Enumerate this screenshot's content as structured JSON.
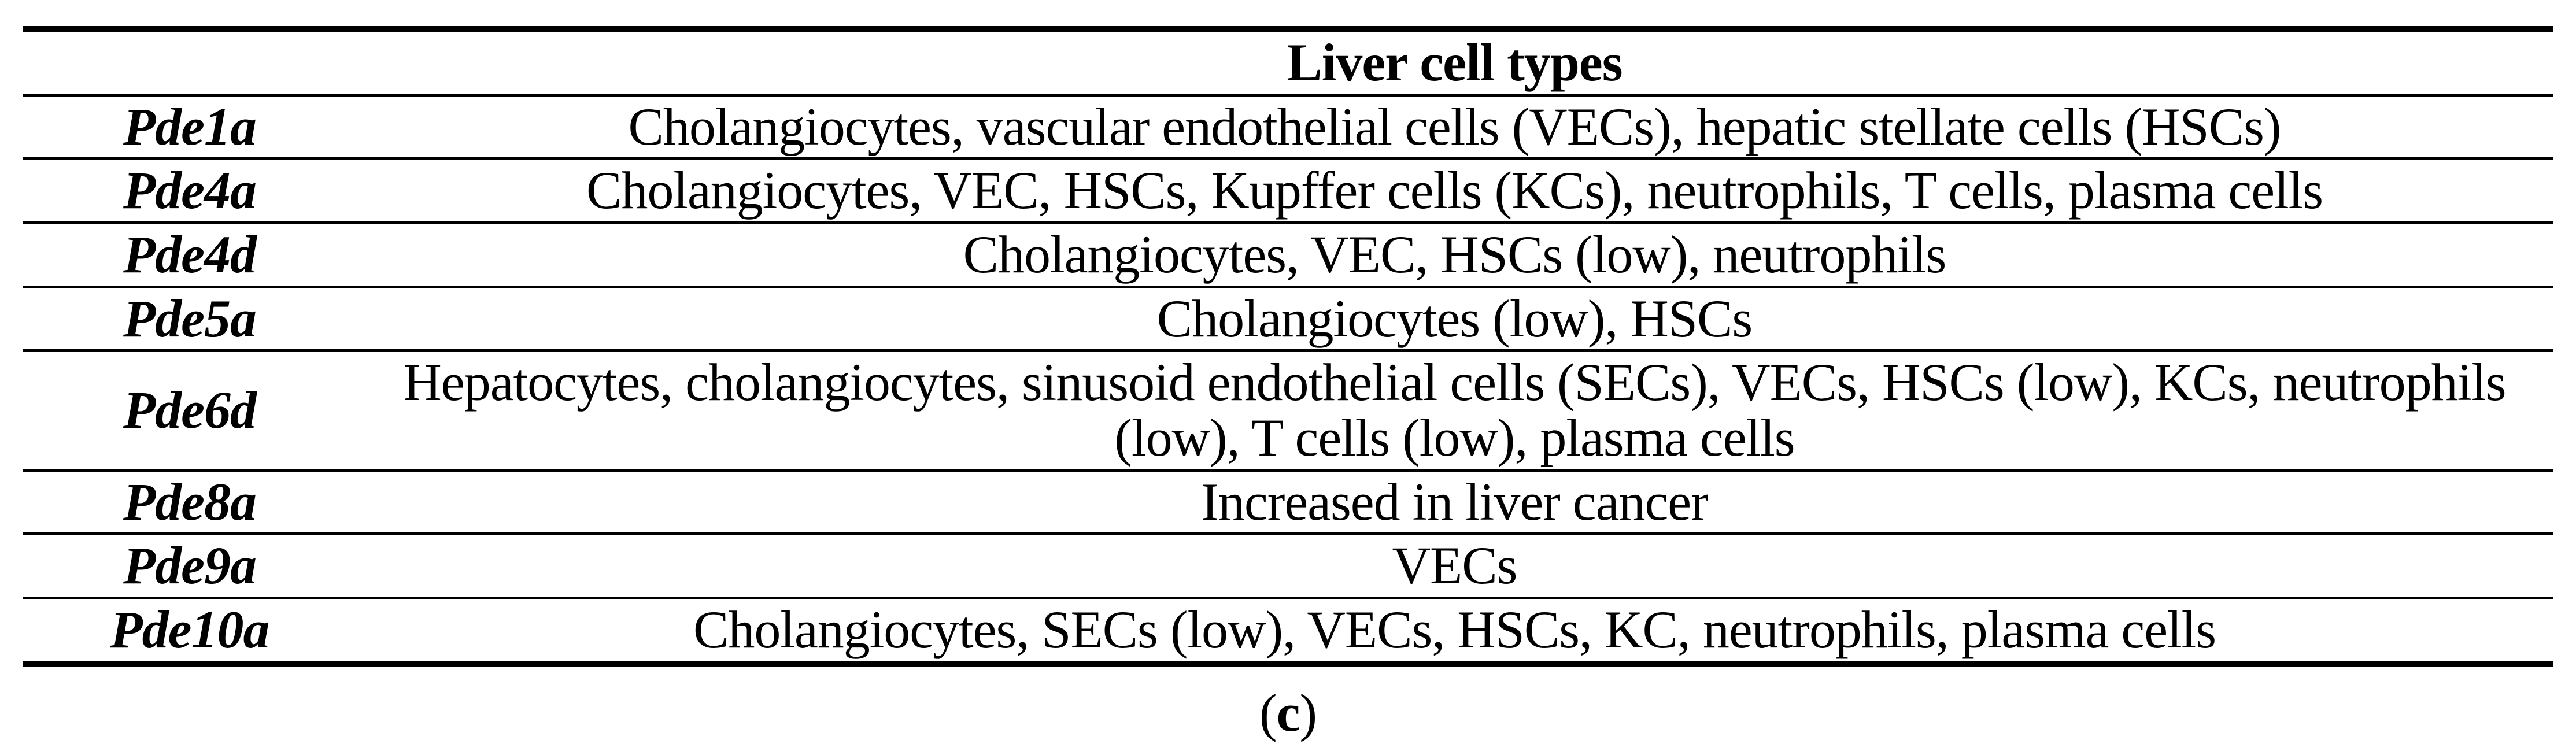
{
  "table": {
    "header": {
      "gene_col": "",
      "cell_types_col": "Liver cell types"
    },
    "rows": [
      {
        "gene": "Pde1a",
        "cell_types": "Cholangiocytes, vascular endothelial cells (VECs), hepatic stellate cells (HSCs)"
      },
      {
        "gene": "Pde4a",
        "cell_types": "Cholangiocytes, VEC, HSCs, Kupffer cells (KCs), neutrophils, T cells, plasma cells"
      },
      {
        "gene": "Pde4d",
        "cell_types": "Cholangiocytes, VEC, HSCs (low), neutrophils"
      },
      {
        "gene": "Pde5a",
        "cell_types": "Cholangiocytes (low), HSCs"
      },
      {
        "gene": "Pde6d",
        "cell_types": "Hepatocytes, cholangiocytes, sinusoid endothelial cells (SECs), VECs, HSCs (low), KCs, neutrophils (low), T cells (low), plasma cells"
      },
      {
        "gene": "Pde8a",
        "cell_types": "Increased in liver cancer"
      },
      {
        "gene": "Pde9a",
        "cell_types": "VECs"
      },
      {
        "gene": "Pde10a",
        "cell_types": "Cholangiocytes, SECs (low), VECs, HSCs, KC, neutrophils, plasma cells"
      }
    ],
    "caption": {
      "open": "(",
      "letter": "c",
      "close": ")"
    }
  },
  "colors": {
    "text": "#000000",
    "background": "#ffffff",
    "rule": "#000000"
  }
}
